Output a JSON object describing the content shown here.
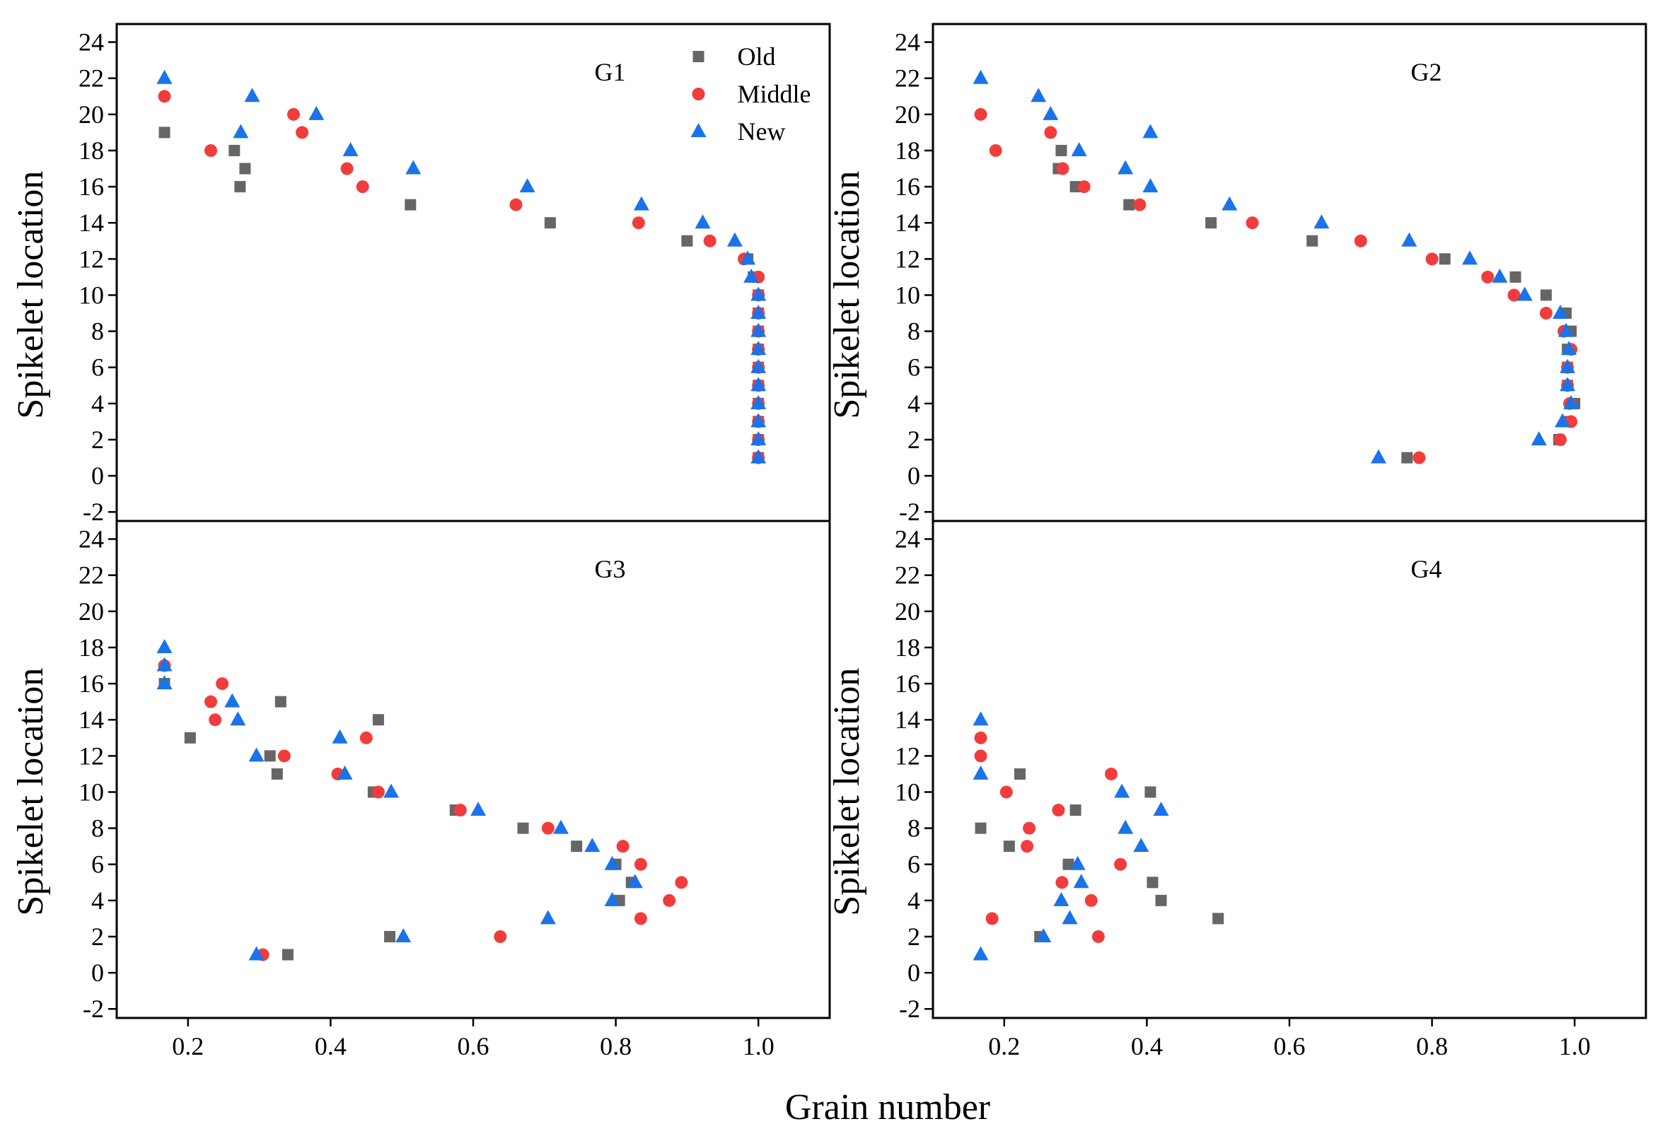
{
  "chart_data": {
    "type": "scatter",
    "xlabel": "Grain number",
    "ylabel": "Spikelet location",
    "xlim": [
      0.1,
      1.1
    ],
    "ylim": [
      -2.5,
      25
    ],
    "xticks": [
      "0.2",
      "0.4",
      "0.6",
      "0.8",
      "1.0"
    ],
    "yticks": [
      "-2",
      "0",
      "2",
      "4",
      "6",
      "8",
      "10",
      "12",
      "14",
      "16",
      "18",
      "20",
      "22",
      "24"
    ],
    "legend": [
      {
        "name": "Old",
        "marker": "square",
        "color": "#666666"
      },
      {
        "name": "Middle",
        "marker": "circle",
        "color": "#f23c3c"
      },
      {
        "name": "New",
        "marker": "triangle",
        "color": "#1a73e8"
      }
    ],
    "panels": [
      {
        "label": "G1",
        "series": [
          {
            "name": "Old",
            "points": [
              [
                0.167,
                19
              ],
              [
                0.265,
                18
              ],
              [
                0.273,
                16
              ],
              [
                0.28,
                17
              ],
              [
                0.512,
                15
              ],
              [
                0.708,
                14
              ],
              [
                0.9,
                13
              ],
              [
                0.985,
                12
              ],
              [
                0.993,
                11
              ],
              [
                1,
                10
              ],
              [
                1,
                9
              ],
              [
                1,
                8
              ],
              [
                1,
                7
              ],
              [
                1,
                6
              ],
              [
                1,
                5
              ],
              [
                1,
                4
              ],
              [
                1,
                3
              ],
              [
                1,
                2
              ],
              [
                1,
                1
              ]
            ]
          },
          {
            "name": "Middle",
            "points": [
              [
                0.167,
                21
              ],
              [
                0.232,
                18
              ],
              [
                0.348,
                20
              ],
              [
                0.36,
                19
              ],
              [
                0.423,
                17
              ],
              [
                0.445,
                16
              ],
              [
                0.66,
                15
              ],
              [
                0.832,
                14
              ],
              [
                0.932,
                13
              ],
              [
                0.98,
                12
              ],
              [
                1,
                11
              ],
              [
                1,
                10
              ],
              [
                1,
                9
              ],
              [
                1,
                8
              ],
              [
                1,
                7
              ],
              [
                1,
                6
              ],
              [
                1,
                5
              ],
              [
                1,
                4
              ],
              [
                1,
                3
              ],
              [
                1,
                2
              ],
              [
                1,
                1
              ]
            ]
          },
          {
            "name": "New",
            "points": [
              [
                0.167,
                22
              ],
              [
                0.274,
                19
              ],
              [
                0.29,
                21
              ],
              [
                0.38,
                20
              ],
              [
                0.428,
                18
              ],
              [
                0.516,
                17
              ],
              [
                0.676,
                16
              ],
              [
                0.836,
                15
              ],
              [
                0.922,
                14
              ],
              [
                0.967,
                13
              ],
              [
                0.985,
                12
              ],
              [
                0.99,
                11
              ],
              [
                1,
                10
              ],
              [
                1,
                9
              ],
              [
                1,
                8
              ],
              [
                1,
                7
              ],
              [
                1,
                6
              ],
              [
                1,
                5
              ],
              [
                1,
                4
              ],
              [
                1,
                3
              ],
              [
                1,
                2
              ],
              [
                1,
                1
              ]
            ]
          }
        ]
      },
      {
        "label": "G2",
        "series": [
          {
            "name": "Old",
            "points": [
              [
                0.28,
                18
              ],
              [
                0.276,
                17
              ],
              [
                0.3,
                16
              ],
              [
                0.375,
                15
              ],
              [
                0.49,
                14
              ],
              [
                0.632,
                13
              ],
              [
                0.818,
                12
              ],
              [
                0.917,
                11
              ],
              [
                0.96,
                10
              ],
              [
                0.988,
                9
              ],
              [
                0.995,
                8
              ],
              [
                0.99,
                7
              ],
              [
                0.99,
                6
              ],
              [
                0.99,
                5
              ],
              [
                1,
                4
              ],
              [
                0.99,
                3
              ],
              [
                0.978,
                2
              ],
              [
                0.765,
                1
              ]
            ]
          },
          {
            "name": "Middle",
            "points": [
              [
                0.167,
                20
              ],
              [
                0.188,
                18
              ],
              [
                0.265,
                19
              ],
              [
                0.282,
                17
              ],
              [
                0.312,
                16
              ],
              [
                0.39,
                15
              ],
              [
                0.548,
                14
              ],
              [
                0.7,
                13
              ],
              [
                0.8,
                12
              ],
              [
                0.878,
                11
              ],
              [
                0.915,
                10
              ],
              [
                0.96,
                9
              ],
              [
                0.985,
                8
              ],
              [
                0.995,
                7
              ],
              [
                0.99,
                6
              ],
              [
                0.99,
                5
              ],
              [
                0.993,
                4
              ],
              [
                0.995,
                3
              ],
              [
                0.98,
                2
              ],
              [
                0.782,
                1
              ]
            ]
          },
          {
            "name": "New",
            "points": [
              [
                0.167,
                22
              ],
              [
                0.248,
                21
              ],
              [
                0.265,
                20
              ],
              [
                0.305,
                18
              ],
              [
                0.37,
                17
              ],
              [
                0.405,
                19
              ],
              [
                0.405,
                16
              ],
              [
                0.516,
                15
              ],
              [
                0.645,
                14
              ],
              [
                0.768,
                13
              ],
              [
                0.853,
                12
              ],
              [
                0.895,
                11
              ],
              [
                0.93,
                10
              ],
              [
                0.98,
                9
              ],
              [
                0.988,
                8
              ],
              [
                0.992,
                7
              ],
              [
                0.99,
                6
              ],
              [
                0.99,
                5
              ],
              [
                0.995,
                4
              ],
              [
                0.983,
                3
              ],
              [
                0.95,
                2
              ],
              [
                0.725,
                1
              ]
            ]
          }
        ]
      },
      {
        "label": "G3",
        "series": [
          {
            "name": "Old",
            "points": [
              [
                0.167,
                16
              ],
              [
                0.203,
                13
              ],
              [
                0.315,
                12
              ],
              [
                0.325,
                11
              ],
              [
                0.33,
                15
              ],
              [
                0.34,
                1
              ],
              [
                0.46,
                10
              ],
              [
                0.467,
                14
              ],
              [
                0.483,
                2
              ],
              [
                0.575,
                9
              ],
              [
                0.67,
                8
              ],
              [
                0.745,
                7
              ],
              [
                0.8,
                6
              ],
              [
                0.805,
                4
              ],
              [
                0.822,
                5
              ]
            ]
          },
          {
            "name": "Middle",
            "points": [
              [
                0.167,
                17
              ],
              [
                0.232,
                15
              ],
              [
                0.238,
                14
              ],
              [
                0.248,
                16
              ],
              [
                0.305,
                1
              ],
              [
                0.335,
                12
              ],
              [
                0.41,
                11
              ],
              [
                0.45,
                13
              ],
              [
                0.467,
                10
              ],
              [
                0.582,
                9
              ],
              [
                0.638,
                2
              ],
              [
                0.705,
                8
              ],
              [
                0.81,
                7
              ],
              [
                0.835,
                6
              ],
              [
                0.835,
                3
              ],
              [
                0.875,
                4
              ],
              [
                0.892,
                5
              ]
            ]
          },
          {
            "name": "New",
            "points": [
              [
                0.167,
                18
              ],
              [
                0.167,
                17
              ],
              [
                0.167,
                16
              ],
              [
                0.262,
                15
              ],
              [
                0.27,
                14
              ],
              [
                0.296,
                12
              ],
              [
                0.296,
                1
              ],
              [
                0.413,
                13
              ],
              [
                0.42,
                11
              ],
              [
                0.485,
                10
              ],
              [
                0.502,
                2
              ],
              [
                0.607,
                9
              ],
              [
                0.705,
                3
              ],
              [
                0.723,
                8
              ],
              [
                0.767,
                7
              ],
              [
                0.795,
                6
              ],
              [
                0.795,
                4
              ],
              [
                0.827,
                5
              ]
            ]
          }
        ]
      },
      {
        "label": "G4",
        "series": [
          {
            "name": "Old",
            "points": [
              [
                0.167,
                8
              ],
              [
                0.207,
                7
              ],
              [
                0.222,
                11
              ],
              [
                0.25,
                2
              ],
              [
                0.29,
                6
              ],
              [
                0.3,
                9
              ],
              [
                0.405,
                10
              ],
              [
                0.408,
                5
              ],
              [
                0.42,
                4
              ],
              [
                0.5,
                3
              ]
            ]
          },
          {
            "name": "Middle",
            "points": [
              [
                0.167,
                13
              ],
              [
                0.167,
                12
              ],
              [
                0.183,
                3
              ],
              [
                0.203,
                10
              ],
              [
                0.232,
                7
              ],
              [
                0.235,
                8
              ],
              [
                0.276,
                9
              ],
              [
                0.281,
                5
              ],
              [
                0.322,
                4
              ],
              [
                0.332,
                2
              ],
              [
                0.35,
                11
              ],
              [
                0.363,
                6
              ]
            ]
          },
          {
            "name": "New",
            "points": [
              [
                0.167,
                14
              ],
              [
                0.167,
                11
              ],
              [
                0.167,
                1
              ],
              [
                0.255,
                2
              ],
              [
                0.28,
                4
              ],
              [
                0.292,
                3
              ],
              [
                0.303,
                6
              ],
              [
                0.308,
                5
              ],
              [
                0.365,
                10
              ],
              [
                0.37,
                8
              ],
              [
                0.392,
                7
              ],
              [
                0.42,
                9
              ]
            ]
          }
        ]
      }
    ]
  }
}
